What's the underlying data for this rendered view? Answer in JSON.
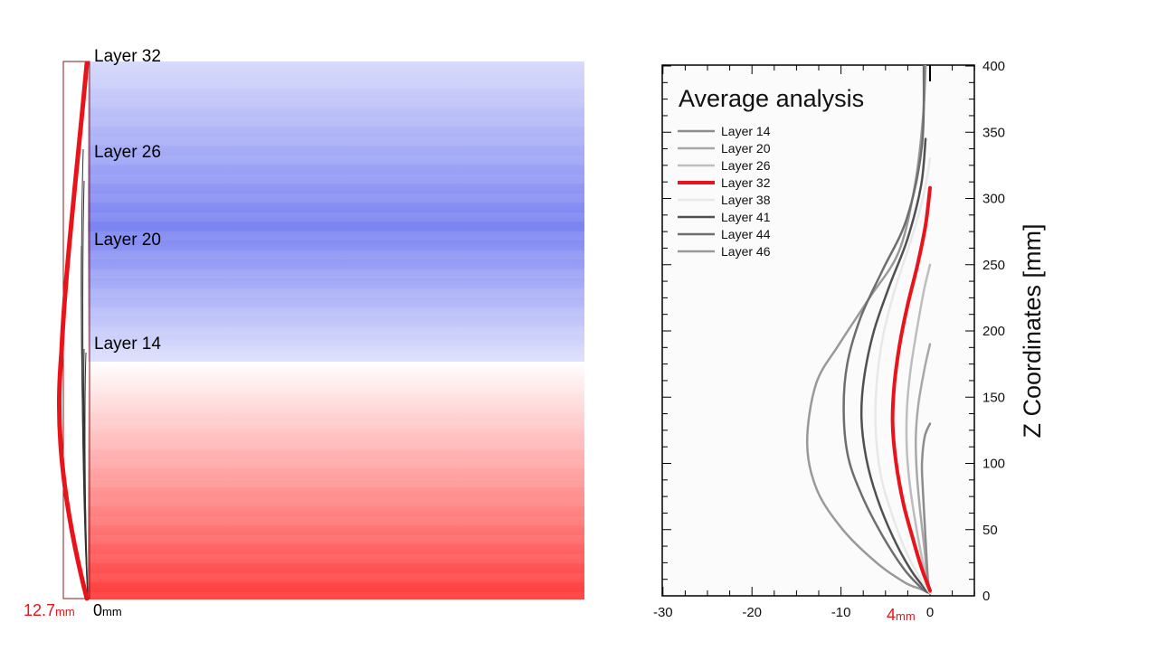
{
  "left_panel": {
    "layer_labels": [
      "Layer 32",
      "Layer 26",
      "Layer 20",
      "Layer 14"
    ],
    "scale_left_value": "12.7",
    "scale_left_unit": "mm",
    "scale_right_value": "0",
    "scale_right_unit": "mm",
    "colors": {
      "highlight": "#e8141a",
      "outline": "#8b1a1a",
      "stack_top": "#6f78f0",
      "stack_bottom": "#ff3a3a"
    }
  },
  "right_panel": {
    "title": "Average analysis",
    "ylabel": "Z Coordinates [mm]",
    "x_ticks": [
      "-30",
      "-20",
      "-10",
      "0"
    ],
    "y_ticks": [
      "0",
      "50",
      "100",
      "150",
      "200",
      "250",
      "300",
      "350",
      "400"
    ],
    "callout_value": "4",
    "callout_unit": "mm"
  },
  "chart_data": {
    "type": "line",
    "title": "Average analysis",
    "xlabel": "",
    "ylabel": "Z Coordinates [mm]",
    "xlim": [
      -30,
      5
    ],
    "ylim": [
      0,
      400
    ],
    "grid": false,
    "legend_position": "top-left",
    "series": [
      {
        "name": "Layer 14",
        "color": "#8c8c8c",
        "width": 2.5,
        "points": [
          [
            0,
            130
          ],
          [
            -0.6,
            120
          ],
          [
            -0.9,
            100
          ],
          [
            -0.8,
            80
          ],
          [
            -0.6,
            55
          ],
          [
            -0.4,
            30
          ],
          [
            -0.2,
            10
          ],
          [
            0,
            3
          ]
        ]
      },
      {
        "name": "Layer 20",
        "color": "#a8a8a8",
        "width": 2.5,
        "points": [
          [
            0,
            190
          ],
          [
            -0.6,
            172
          ],
          [
            -1.3,
            145
          ],
          [
            -1.6,
            120
          ],
          [
            -1.5,
            95
          ],
          [
            -1.2,
            70
          ],
          [
            -0.7,
            40
          ],
          [
            -0.3,
            15
          ],
          [
            0,
            3
          ]
        ]
      },
      {
        "name": "Layer 26",
        "color": "#bdbdbd",
        "width": 2.5,
        "points": [
          [
            0,
            250
          ],
          [
            -0.7,
            230
          ],
          [
            -1.5,
            200
          ],
          [
            -2.2,
            170
          ],
          [
            -2.6,
            140
          ],
          [
            -2.6,
            110
          ],
          [
            -2.2,
            80
          ],
          [
            -1.5,
            50
          ],
          [
            -0.7,
            22
          ],
          [
            0,
            3
          ]
        ]
      },
      {
        "name": "Layer 32",
        "color": "#e8141a",
        "width": 4,
        "points": [
          [
            0,
            308
          ],
          [
            -0.5,
            280
          ],
          [
            -1.4,
            250
          ],
          [
            -2.5,
            220
          ],
          [
            -3.4,
            190
          ],
          [
            -4,
            160
          ],
          [
            -4.2,
            130
          ],
          [
            -3.8,
            100
          ],
          [
            -3,
            70
          ],
          [
            -2,
            45
          ],
          [
            -1,
            22
          ],
          [
            0,
            4
          ]
        ]
      },
      {
        "name": "Layer 38",
        "color": "#e8e8e8",
        "width": 2.5,
        "points": [
          [
            0,
            330
          ],
          [
            -0.8,
            300
          ],
          [
            -2.3,
            265
          ],
          [
            -4,
            230
          ],
          [
            -5.3,
            195
          ],
          [
            -6,
            160
          ],
          [
            -6.1,
            125
          ],
          [
            -5.5,
            90
          ],
          [
            -4.2,
            60
          ],
          [
            -2.6,
            32
          ],
          [
            -1,
            12
          ],
          [
            0,
            2
          ]
        ]
      },
      {
        "name": "Layer 41",
        "color": "#505050",
        "width": 2.5,
        "points": [
          [
            -0.5,
            345
          ],
          [
            -1,
            310
          ],
          [
            -2.5,
            270
          ],
          [
            -4.5,
            235
          ],
          [
            -6.3,
            200
          ],
          [
            -7.4,
            165
          ],
          [
            -7.7,
            135
          ],
          [
            -7.2,
            105
          ],
          [
            -6,
            75
          ],
          [
            -4.2,
            45
          ],
          [
            -2.2,
            20
          ],
          [
            -0.5,
            5
          ],
          [
            0,
            2
          ]
        ]
      },
      {
        "name": "Layer 44",
        "color": "#6e6e6e",
        "width": 2.5,
        "points": [
          [
            -0.7,
            400
          ],
          [
            -0.9,
            340
          ],
          [
            -2.6,
            285
          ],
          [
            -5.4,
            245
          ],
          [
            -7.8,
            210
          ],
          [
            -9.3,
            175
          ],
          [
            -9.7,
            140
          ],
          [
            -9.2,
            105
          ],
          [
            -7.6,
            75
          ],
          [
            -5.3,
            45
          ],
          [
            -2.9,
            20
          ],
          [
            -0.8,
            5
          ],
          [
            0,
            2
          ]
        ]
      },
      {
        "name": "Layer 46",
        "color": "#999999",
        "width": 2.5,
        "points": [
          [
            -0.5,
            400
          ],
          [
            -0.8,
            360
          ],
          [
            -1.7,
            310
          ],
          [
            -3.5,
            260
          ],
          [
            -6.8,
            225
          ],
          [
            -10.2,
            190
          ],
          [
            -12.8,
            160
          ],
          [
            -13.8,
            115
          ],
          [
            -12.7,
            80
          ],
          [
            -9.8,
            50
          ],
          [
            -6,
            25
          ],
          [
            -2.8,
            10
          ],
          [
            -1,
            5
          ],
          [
            0,
            2
          ]
        ]
      }
    ]
  }
}
